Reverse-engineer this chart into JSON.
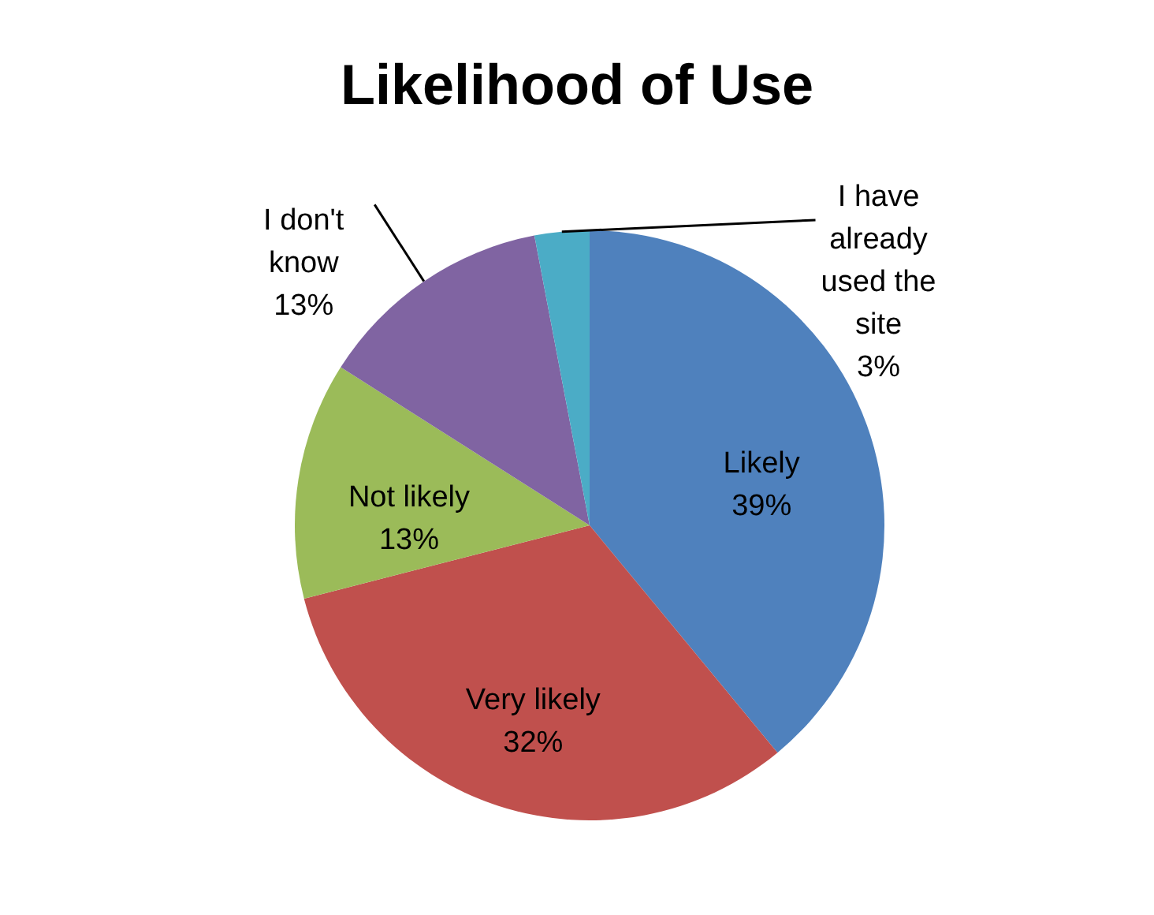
{
  "chart_data": {
    "type": "pie",
    "title": "Likelihood of Use",
    "categories": [
      "Likely",
      "Very likely",
      "Not likely",
      "I don't know",
      "I have already used the site"
    ],
    "values": [
      39,
      32,
      13,
      13,
      3
    ],
    "value_labels": [
      "39%",
      "32%",
      "13%",
      "13%",
      "3%"
    ],
    "colors": [
      "#4f81bd",
      "#c0504d",
      "#9bbb59",
      "#8064a2",
      "#4bacc6"
    ],
    "legend": false
  }
}
